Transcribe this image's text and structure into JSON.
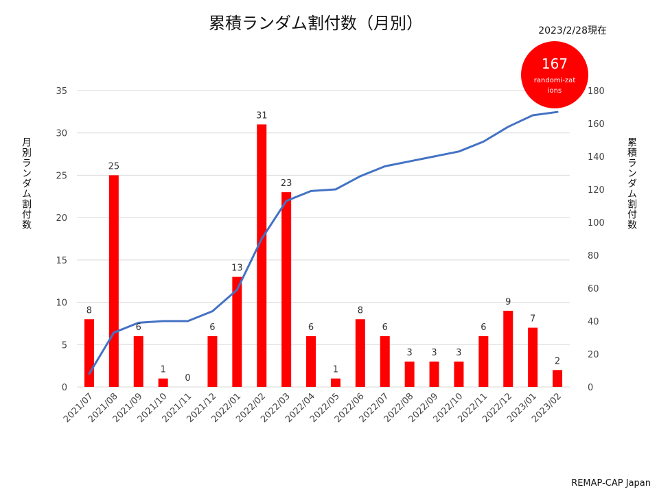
{
  "as_of": "2023/2/28現在",
  "total_badge": {
    "value": "167",
    "text": "randomi-zations"
  },
  "source": "REMAP-CAP Japan",
  "colors": {
    "bars": "#ff0000",
    "line": "#4472c4",
    "badge": "#ff0000"
  },
  "chart_data": {
    "type": "bar",
    "title": "累積ランダム割付数（月別）",
    "categories": [
      "2021/07",
      "2021/08",
      "2021/09",
      "2021/10",
      "2021/11",
      "2021/12",
      "2022/01",
      "2022/02",
      "2022/03",
      "2022/04",
      "2022/05",
      "2022/06",
      "2022/07",
      "2022/08",
      "2022/09",
      "2022/10",
      "2022/11",
      "2022/12",
      "2023/01",
      "2023/02"
    ],
    "series": [
      {
        "type": "bar",
        "axis": "left",
        "values": [
          8,
          25,
          6,
          1,
          0,
          6,
          13,
          31,
          23,
          6,
          1,
          8,
          6,
          3,
          3,
          3,
          6,
          9,
          7,
          2
        ]
      },
      {
        "type": "line",
        "axis": "right",
        "values": [
          8,
          33,
          39,
          40,
          40,
          46,
          59,
          90,
          113,
          119,
          120,
          128,
          134,
          137,
          140,
          143,
          149,
          158,
          165,
          167
        ]
      }
    ],
    "ylabel": "月別ランダム割付数",
    "y2label": "累積ランダム割付数",
    "ylim": [
      0,
      35
    ],
    "yticks": [
      0,
      5,
      10,
      15,
      20,
      25,
      30,
      35
    ],
    "y2lim": [
      0,
      180
    ],
    "y2ticks": [
      0,
      20,
      40,
      60,
      80,
      100,
      120,
      140,
      160,
      180
    ],
    "grid": true
  }
}
